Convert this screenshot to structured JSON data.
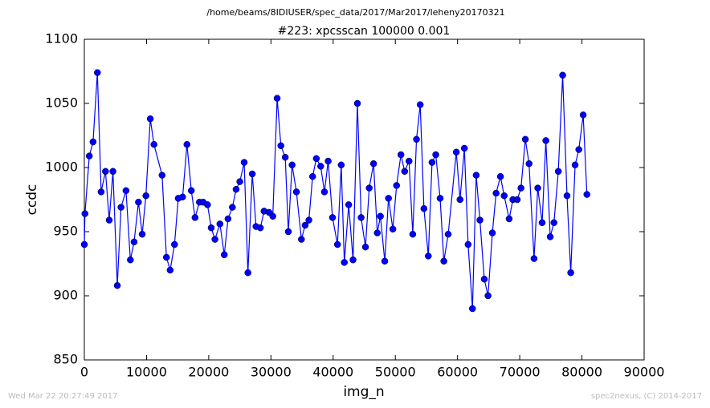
{
  "chart_data": {
    "type": "line",
    "suptitle": "/home/beams/8IDIUSER/spec_data/2017/Mar2017/leheny20170321",
    "title": "#223: xpcsscan 100000 0.001",
    "x_label": "img_n",
    "y_label": "ccdc",
    "footer_left": "Wed Mar 22 20:27:49 2017",
    "footer_right": "spec2nexus, (C) 2014-2017",
    "xlim": [
      0,
      90000
    ],
    "ylim": [
      850,
      1100
    ],
    "xticks": [
      0,
      10000,
      20000,
      30000,
      40000,
      50000,
      60000,
      70000,
      80000,
      90000
    ],
    "yticks": [
      850,
      900,
      950,
      1000,
      1050,
      1100
    ],
    "grid": false,
    "x": [
      0,
      100,
      800,
      1400,
      2100,
      2700,
      3400,
      4000,
      4600,
      5300,
      5900,
      6700,
      7400,
      8000,
      8700,
      9300,
      9900,
      10600,
      11200,
      12500,
      13200,
      13800,
      14500,
      15100,
      15800,
      16500,
      17200,
      17800,
      18500,
      19100,
      19800,
      20400,
      21000,
      21800,
      22500,
      23100,
      23800,
      24400,
      25000,
      25700,
      26300,
      27000,
      27600,
      28300,
      28900,
      29700,
      30300,
      31000,
      31600,
      32300,
      32800,
      33400,
      34100,
      34900,
      35500,
      36100,
      36700,
      37300,
      38000,
      38600,
      39200,
      39900,
      40700,
      41300,
      41800,
      42500,
      43200,
      43900,
      44500,
      45200,
      45800,
      46500,
      47100,
      47600,
      48300,
      48900,
      49600,
      50200,
      50900,
      51500,
      52200,
      52800,
      53400,
      54000,
      54600,
      55300,
      55900,
      56500,
      57200,
      57800,
      58500,
      59800,
      60400,
      61100,
      61700,
      62400,
      63000,
      63600,
      64300,
      64900,
      65600,
      66200,
      66900,
      67500,
      68300,
      68900,
      69600,
      70200,
      70900,
      71500,
      72300,
      72900,
      73600,
      74200,
      74900,
      75500,
      76200,
      76900,
      77600,
      78200,
      78900,
      79500,
      80200,
      80800
    ],
    "series": [
      {
        "name": "ccdc",
        "color": "#0000ff",
        "values": [
          940,
          964,
          1009,
          1020,
          1074,
          981,
          997,
          959,
          997,
          908,
          969,
          982,
          928,
          942,
          973,
          948,
          978,
          1038,
          1018,
          994,
          930,
          920,
          940,
          976,
          977,
          1018,
          982,
          961,
          973,
          973,
          971,
          953,
          944,
          956,
          932,
          960,
          969,
          983,
          989,
          1004,
          918,
          995,
          954,
          953,
          966,
          965,
          962,
          1054,
          1017,
          1008,
          950,
          1002,
          981,
          944,
          955,
          959,
          993,
          1007,
          1001,
          981,
          1005,
          961,
          940,
          1002,
          926,
          971,
          928,
          1050,
          961,
          938,
          984,
          1003,
          949,
          962,
          927,
          976,
          952,
          986,
          1010,
          997,
          1005,
          948,
          1022,
          1049,
          968,
          931,
          1004,
          1010,
          976,
          927,
          948,
          1012,
          975,
          1015,
          940,
          890,
          994,
          959,
          913,
          900,
          949,
          980,
          993,
          978,
          960,
          975,
          975,
          984,
          1022,
          1003,
          929,
          984,
          957,
          1021,
          946,
          957,
          997,
          1072,
          978,
          918,
          1002,
          1014,
          1041,
          979
        ]
      }
    ]
  }
}
